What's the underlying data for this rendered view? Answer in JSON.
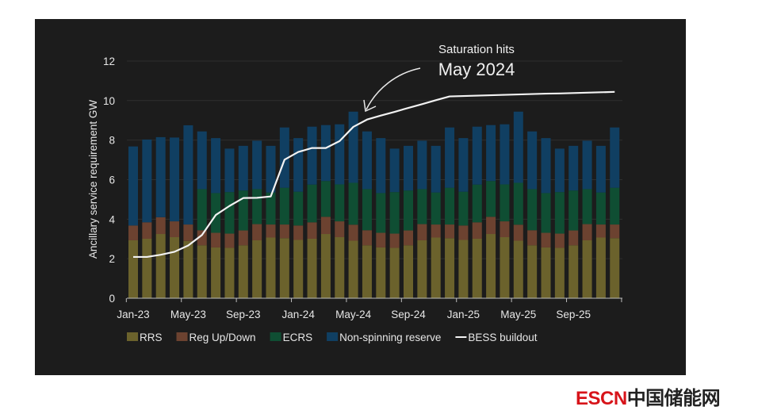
{
  "chart_data": {
    "type": "bar",
    "stacked": true,
    "title": "",
    "ylabel": "Ancillary service requirement GW",
    "xlabel": "",
    "ylim": [
      0,
      12
    ],
    "yticks": [
      "0",
      "2",
      "4",
      "6",
      "8",
      "10",
      "12"
    ],
    "grid": true,
    "legend_position": "bottom",
    "categories": [
      "Jan-23",
      "Feb-23",
      "Mar-23",
      "Apr-23",
      "May-23",
      "Jun-23",
      "Jul-23",
      "Aug-23",
      "Sep-23",
      "Oct-23",
      "Nov-23",
      "Dec-23",
      "Jan-24",
      "Feb-24",
      "Mar-24",
      "Apr-24",
      "May-24",
      "Jun-24",
      "Jul-24",
      "Aug-24",
      "Sep-24",
      "Oct-24",
      "Nov-24",
      "Dec-24",
      "Jan-25",
      "Feb-25",
      "Mar-25",
      "Apr-25",
      "May-25",
      "Jun-25",
      "Jul-25",
      "Aug-25",
      "Sep-25",
      "Oct-25",
      "Nov-25",
      "Dec-25"
    ],
    "xtick_labels": [
      "Jan-23",
      "May-23",
      "Sep-23",
      "Jan-24",
      "May-24",
      "Sep-24",
      "Jan-25",
      "May-25",
      "Sep-25"
    ],
    "series": [
      {
        "name": "RRS",
        "color": "#6b622c",
        "values": [
          2.93,
          3.01,
          3.25,
          3.09,
          2.9,
          2.68,
          2.57,
          2.55,
          2.68,
          2.93,
          3.07,
          3.04,
          2.95,
          3.01,
          3.25,
          3.09,
          2.91,
          2.68,
          2.57,
          2.55,
          2.68,
          2.93,
          3.07,
          3.04,
          2.95,
          3.01,
          3.25,
          3.09,
          2.91,
          2.68,
          2.57,
          2.55,
          2.68,
          2.93,
          3.07,
          3.04
        ]
      },
      {
        "name": "Reg Up/Down",
        "color": "#6c4230",
        "values": [
          0.75,
          0.83,
          0.85,
          0.8,
          0.83,
          0.76,
          0.74,
          0.72,
          0.75,
          0.82,
          0.66,
          0.69,
          0.73,
          0.83,
          0.87,
          0.8,
          0.81,
          0.76,
          0.74,
          0.72,
          0.75,
          0.82,
          0.66,
          0.69,
          0.73,
          0.83,
          0.87,
          0.8,
          0.81,
          0.76,
          0.74,
          0.72,
          0.75,
          0.82,
          0.66,
          0.69
        ]
      },
      {
        "name": "ECRS",
        "color": "#0f4e33",
        "values": [
          0,
          0,
          0,
          0,
          0,
          2.08,
          2.01,
          2.1,
          2.02,
          1.77,
          1.62,
          1.86,
          1.71,
          1.91,
          1.81,
          1.87,
          2.12,
          2.08,
          2.01,
          2.1,
          2.02,
          1.77,
          1.62,
          1.86,
          1.71,
          1.91,
          1.81,
          1.87,
          2.12,
          2.08,
          2.01,
          2.1,
          2.02,
          1.77,
          1.62,
          1.86
        ]
      },
      {
        "name": "Non-spinning reserve",
        "color": "#103f62",
        "values": [
          4.0,
          4.19,
          4.05,
          4.24,
          5.02,
          2.92,
          2.78,
          2.2,
          2.26,
          2.45,
          2.36,
          3.05,
          2.71,
          2.93,
          2.83,
          3.04,
          3.6,
          2.92,
          2.78,
          2.2,
          2.26,
          2.45,
          2.36,
          3.05,
          2.71,
          2.93,
          2.83,
          3.04,
          3.6,
          2.92,
          2.78,
          2.2,
          2.26,
          2.45,
          2.36,
          3.05
        ]
      }
    ],
    "line": {
      "name": "BESS buildout",
      "color": "#f2f2f2",
      "values": [
        2.09,
        2.09,
        2.2,
        2.35,
        2.67,
        3.2,
        4.21,
        4.67,
        5.07,
        5.08,
        5.15,
        7.01,
        7.4,
        7.6,
        7.6,
        7.95,
        8.67,
        9.04,
        9.24,
        9.43,
        9.63,
        9.82,
        10.02,
        10.21,
        10.23,
        10.25,
        10.27,
        10.29,
        10.31,
        10.33,
        10.35,
        10.36,
        10.38,
        10.4,
        10.42,
        10.44
      ]
    },
    "annotation": {
      "line1": "Saturation hits",
      "line2": "May 2024",
      "points_to": "May-24"
    }
  },
  "watermark": {
    "latin": "ESCN",
    "chinese": "中国储能网"
  }
}
